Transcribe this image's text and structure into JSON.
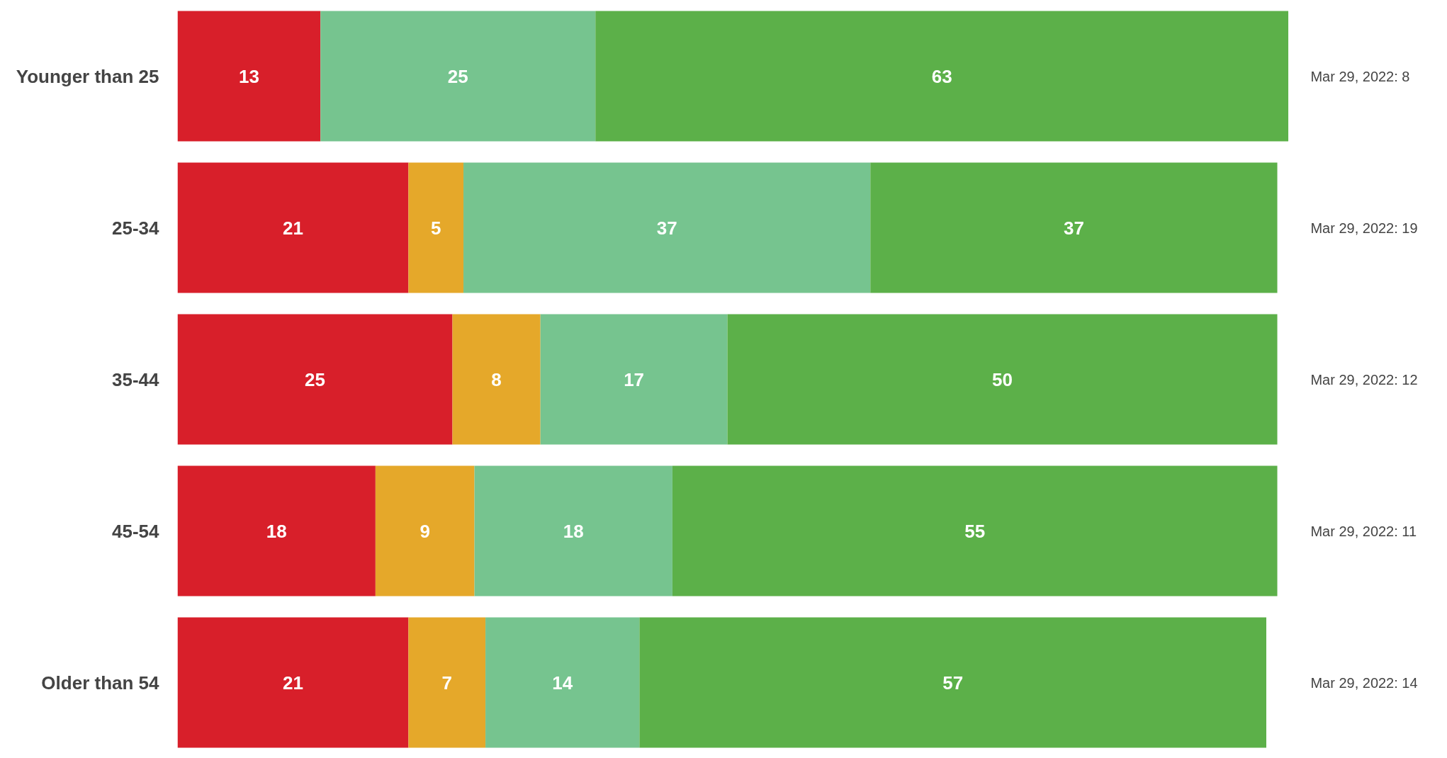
{
  "chart_data": {
    "type": "bar",
    "orientation": "horizontal",
    "stacked": true,
    "data_labels": true,
    "grid": false,
    "tick_labels": "y",
    "categories": [
      "Younger than 25",
      "25-34",
      "35-44",
      "45-54",
      "Older than 54"
    ],
    "series": [
      {
        "color": "#d81f2a",
        "values": [
          13,
          21,
          25,
          18,
          21
        ]
      },
      {
        "color": "#e5a82a",
        "values": [
          null,
          5,
          8,
          9,
          7
        ]
      },
      {
        "color": "#76c48f",
        "values": [
          25,
          37,
          17,
          18,
          14
        ]
      },
      {
        "color": "#5cb049",
        "values": [
          63,
          37,
          50,
          55,
          57
        ]
      }
    ],
    "annotations": [
      "Mar 29, 2022: 8",
      "Mar 29, 2022: 19",
      "Mar 29, 2022: 12",
      "Mar 29, 2022: 11",
      "Mar 29, 2022: 14"
    ]
  }
}
